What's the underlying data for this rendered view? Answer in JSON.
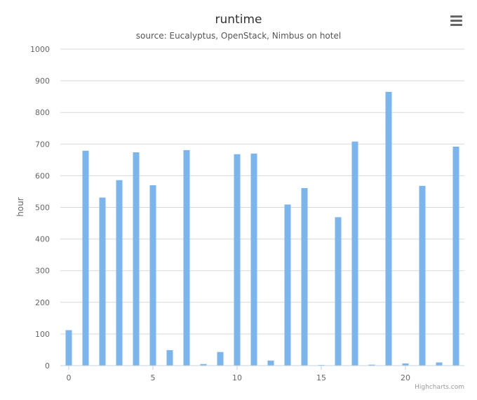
{
  "chart_data": {
    "type": "bar",
    "title": "runtime",
    "subtitle": "source: Eucalyptus, OpenStack, Nimbus on hotel",
    "xlabel": "",
    "ylabel": "hour",
    "x": [
      0,
      1,
      2,
      3,
      4,
      5,
      6,
      7,
      8,
      9,
      10,
      11,
      12,
      13,
      14,
      15,
      16,
      17,
      18,
      19,
      20,
      21,
      22,
      23
    ],
    "values": [
      112,
      679,
      531,
      586,
      674,
      570,
      49,
      681,
      5,
      43,
      668,
      670,
      16,
      509,
      561,
      2,
      469,
      708,
      3,
      865,
      7,
      568,
      10,
      692
    ],
    "x_ticks": [
      "0",
      "5",
      "10",
      "15",
      "20"
    ],
    "y_ticks": [
      "0",
      "100",
      "200",
      "300",
      "400",
      "500",
      "600",
      "700",
      "800",
      "900",
      "1000"
    ],
    "ylim": [
      0,
      1000
    ],
    "xlim": [
      -0.5,
      23.5
    ],
    "grid": true,
    "legend": "none",
    "bar_color": "#7cb5ec",
    "credits": "Highcharts.com"
  },
  "menu": {
    "icon": "hamburger-menu-icon"
  }
}
